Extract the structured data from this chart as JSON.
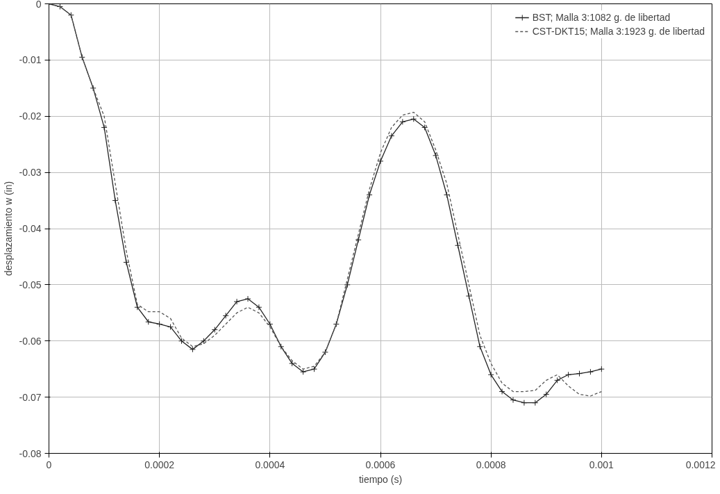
{
  "chart_data": {
    "type": "line",
    "xlabel": "tiempo (s)",
    "ylabel": "desplazamiento w (in)",
    "x": [
      0,
      2e-05,
      4e-05,
      6e-05,
      8e-05,
      0.0001,
      0.00012,
      0.00014,
      0.00016,
      0.00018,
      0.0002,
      0.00022,
      0.00024,
      0.00026,
      0.00028,
      0.0003,
      0.00032,
      0.00034,
      0.00036,
      0.00038,
      0.0004,
      0.00042,
      0.00044,
      0.00046,
      0.00048,
      0.0005,
      0.00052,
      0.00054,
      0.00056,
      0.00058,
      0.0006,
      0.00062,
      0.00064,
      0.00066,
      0.00068,
      0.0007,
      0.00072,
      0.00074,
      0.00076,
      0.00078,
      0.0008,
      0.00082,
      0.00084,
      0.00086,
      0.00088,
      0.0009,
      0.00092,
      0.00094,
      0.00096,
      0.00098,
      0.001
    ],
    "series": [
      {
        "name": "BST; Malla 3:1082 g. de libertad",
        "color": "#222222",
        "marker": "cross",
        "line_style": "solid",
        "values": [
          0,
          -0.0005,
          -0.002,
          -0.0095,
          -0.015,
          -0.022,
          -0.035,
          -0.046,
          -0.054,
          -0.0566,
          -0.057,
          -0.0575,
          -0.06,
          -0.0615,
          -0.06,
          -0.058,
          -0.0555,
          -0.053,
          -0.0525,
          -0.054,
          -0.057,
          -0.061,
          -0.064,
          -0.0655,
          -0.065,
          -0.062,
          -0.057,
          -0.05,
          -0.042,
          -0.034,
          -0.028,
          -0.0235,
          -0.021,
          -0.0205,
          -0.022,
          -0.027,
          -0.034,
          -0.043,
          -0.052,
          -0.061,
          -0.066,
          -0.069,
          -0.0705,
          -0.071,
          -0.071,
          -0.0695,
          -0.067,
          -0.066,
          -0.0658,
          -0.0655,
          -0.065
        ]
      },
      {
        "name": "CST-DKT15; Malla 3:1923 g. de libertad",
        "color": "#555555",
        "marker": "none",
        "line_style": "dashed",
        "values": [
          0,
          -0.0005,
          -0.002,
          -0.0095,
          -0.015,
          -0.02,
          -0.032,
          -0.044,
          -0.0535,
          -0.0548,
          -0.0548,
          -0.056,
          -0.0595,
          -0.061,
          -0.0605,
          -0.059,
          -0.057,
          -0.055,
          -0.054,
          -0.055,
          -0.0575,
          -0.061,
          -0.0635,
          -0.065,
          -0.0645,
          -0.062,
          -0.057,
          -0.049,
          -0.041,
          -0.033,
          -0.0265,
          -0.022,
          -0.0198,
          -0.0193,
          -0.021,
          -0.026,
          -0.032,
          -0.041,
          -0.05,
          -0.059,
          -0.064,
          -0.0675,
          -0.069,
          -0.069,
          -0.0688,
          -0.067,
          -0.066,
          -0.068,
          -0.0695,
          -0.0698,
          -0.069
        ]
      }
    ],
    "xlim": [
      0,
      0.0012
    ],
    "ylim": [
      -0.08,
      0
    ],
    "xticks": [
      0,
      0.0002,
      0.0004,
      0.0006,
      0.0008,
      0.001,
      0.0012
    ],
    "yticks": [
      -0.08,
      -0.07,
      -0.06,
      -0.05,
      -0.04,
      -0.03,
      -0.02,
      -0.01,
      0
    ],
    "grid": true,
    "legend": "top right"
  }
}
